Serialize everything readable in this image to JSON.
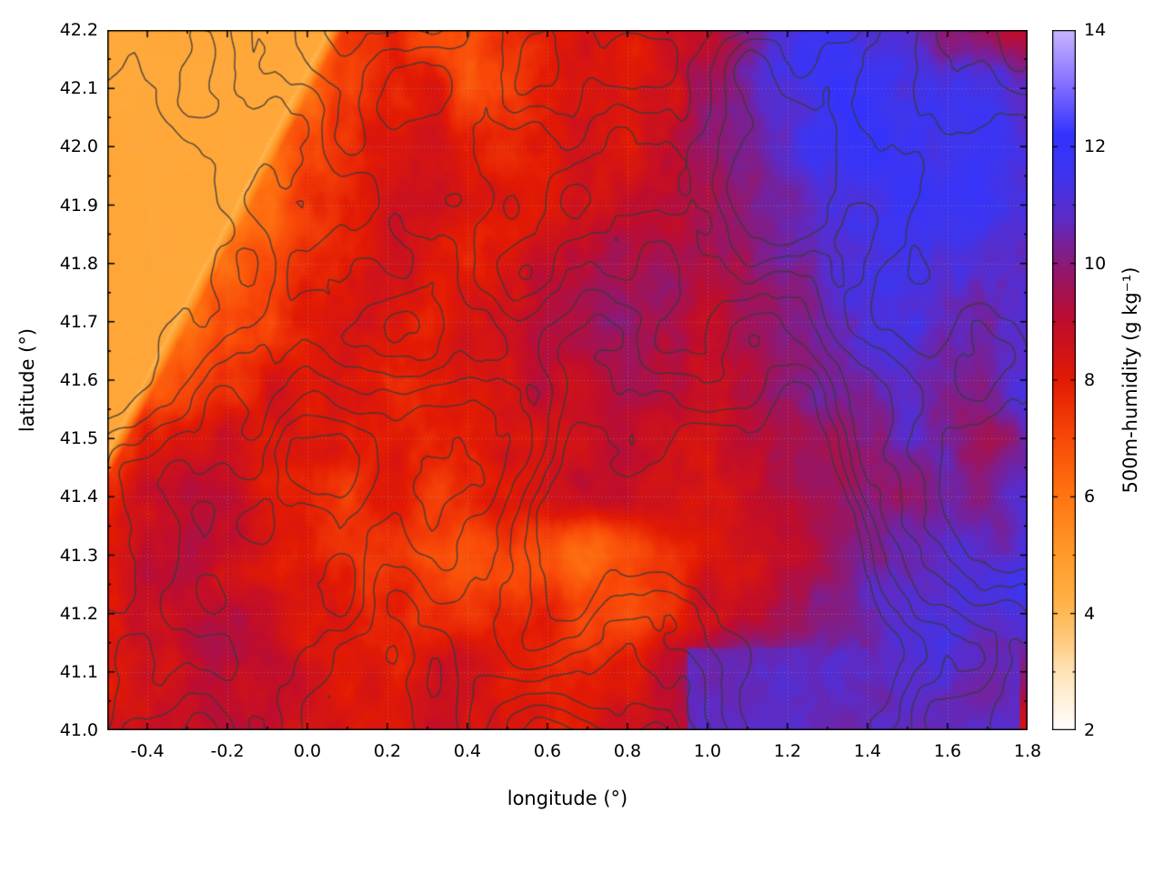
{
  "chart_data": {
    "type": "heatmap",
    "title": "",
    "xlabel": "longitude (°)",
    "ylabel": "latitude (°)",
    "colorbar_label": "500m-humidity (g kg⁻¹)",
    "xlim": [
      -0.5,
      1.8
    ],
    "ylim": [
      41.0,
      42.2
    ],
    "clim": [
      2,
      14
    ],
    "grid": {
      "on": true,
      "style": "dotted"
    },
    "x_tick_labels": [
      "-0.4",
      "-0.2",
      "0.0",
      "0.2",
      "0.4",
      "0.6",
      "0.8",
      "1.0",
      "1.2",
      "1.4",
      "1.6",
      "1.8"
    ],
    "x_tick_values": [
      -0.4,
      -0.2,
      0.0,
      0.2,
      0.4,
      0.6,
      0.8,
      1.0,
      1.2,
      1.4,
      1.6,
      1.8
    ],
    "x_minor_step": 0.1,
    "y_tick_labels": [
      "41.0",
      "41.1",
      "41.2",
      "41.3",
      "41.4",
      "41.5",
      "41.6",
      "41.7",
      "41.8",
      "41.9",
      "42.0",
      "42.1",
      "42.2"
    ],
    "y_tick_values": [
      41.0,
      41.1,
      41.2,
      41.3,
      41.4,
      41.5,
      41.6,
      41.7,
      41.8,
      41.9,
      42.0,
      42.1,
      42.2
    ],
    "y_minor_step": 0.05,
    "colorbar_tick_labels": [
      "2",
      "4",
      "6",
      "8",
      "10",
      "12",
      "14"
    ],
    "colorbar_tick_values": [
      2,
      4,
      6,
      8,
      10,
      12,
      14
    ],
    "colorbar_minor_step": 1,
    "contour_color": "#3a3a3a",
    "contour_levels": [
      -0.3,
      -0.2,
      -0.1,
      0,
      0.1,
      0.2,
      0.3
    ],
    "colormap_stops": [
      [
        2.0,
        "#ffffff"
      ],
      [
        3.0,
        "#ffe4b8"
      ],
      [
        3.6,
        "#ffc878"
      ],
      [
        4.2,
        "#ffb146"
      ],
      [
        5.0,
        "#ff9b2a"
      ],
      [
        6.0,
        "#ff7612"
      ],
      [
        7.0,
        "#f94908"
      ],
      [
        8.0,
        "#e31a04"
      ],
      [
        9.0,
        "#c00d2d"
      ],
      [
        9.7,
        "#9c1560"
      ],
      [
        10.3,
        "#7a2094"
      ],
      [
        10.8,
        "#5c2cc8"
      ],
      [
        11.5,
        "#3f35ee"
      ],
      [
        12.2,
        "#3333ff"
      ],
      [
        13.0,
        "#7e6aff"
      ],
      [
        14.0,
        "#c9b6ff"
      ]
    ],
    "flat_region": {
      "value": 4.55,
      "boundary": [
        [
          0.05,
          42.2
        ],
        [
          -0.5,
          41.48
        ]
      ],
      "fringe_value": 3.9
    },
    "flat_patches": [
      {
        "lon": [
          0.95,
          1.78
        ],
        "lat": [
          41.0,
          41.14
        ],
        "value": 10.7
      }
    ],
    "values_grid": {
      "lon": [
        -0.5,
        -0.4,
        -0.3,
        -0.2,
        -0.1,
        0.0,
        0.1,
        0.2,
        0.3,
        0.4,
        0.5,
        0.6,
        0.7,
        0.8,
        0.9,
        1.0,
        1.1,
        1.2,
        1.3,
        1.4,
        1.5,
        1.6,
        1.7,
        1.8
      ],
      "lat": [
        42.2,
        42.1,
        42.0,
        41.9,
        41.8,
        41.7,
        41.6,
        41.5,
        41.4,
        41.3,
        41.2,
        41.1,
        41.0
      ],
      "humidity": [
        [
          5.0,
          5.0,
          5.0,
          5.0,
          5.2,
          5.6,
          7.4,
          7.8,
          7.0,
          6.8,
          7.6,
          7.9,
          8.3,
          8.0,
          8.6,
          9.2,
          10.4,
          11.0,
          11.4,
          11.2,
          10.8,
          10.2,
          9.6,
          9.0
        ],
        [
          5.0,
          5.0,
          5.0,
          5.1,
          5.4,
          6.2,
          7.2,
          8.0,
          8.1,
          6.9,
          7.2,
          7.9,
          8.4,
          8.1,
          8.7,
          9.6,
          10.6,
          11.2,
          11.6,
          11.9,
          11.6,
          11.2,
          11.3,
          10.8
        ],
        [
          5.0,
          5.0,
          5.1,
          5.3,
          5.8,
          6.8,
          7.7,
          8.1,
          8.3,
          7.7,
          7.6,
          8.1,
          8.6,
          8.3,
          8.9,
          9.9,
          10.3,
          10.9,
          11.6,
          12.0,
          11.9,
          11.6,
          11.9,
          11.3
        ],
        [
          5.0,
          5.1,
          5.3,
          5.6,
          6.4,
          7.2,
          7.9,
          8.4,
          8.5,
          8.1,
          7.9,
          8.3,
          8.6,
          8.9,
          9.3,
          9.6,
          10.1,
          10.6,
          11.1,
          11.5,
          12.0,
          11.8,
          11.5,
          11.2
        ],
        [
          5.1,
          5.3,
          5.6,
          6.2,
          7.0,
          7.7,
          8.1,
          8.6,
          8.3,
          8.1,
          8.4,
          8.9,
          9.1,
          9.4,
          9.6,
          9.4,
          9.9,
          10.3,
          10.8,
          11.2,
          11.5,
          11.2,
          10.9,
          10.7
        ],
        [
          5.2,
          5.5,
          6.1,
          6.9,
          7.4,
          7.9,
          8.3,
          8.1,
          7.9,
          8.3,
          8.6,
          8.9,
          9.3,
          9.6,
          9.4,
          9.1,
          9.6,
          10.1,
          10.5,
          11.0,
          11.2,
          10.8,
          10.3,
          11.0
        ],
        [
          5.5,
          6.1,
          6.9,
          7.6,
          8.1,
          8.4,
          8.1,
          7.9,
          8.1,
          8.4,
          8.6,
          8.9,
          9.1,
          9.3,
          9.1,
          8.9,
          9.3,
          9.8,
          10.2,
          10.5,
          10.8,
          10.5,
          10.1,
          10.9
        ],
        [
          6.8,
          7.6,
          8.1,
          8.6,
          8.3,
          8.1,
          7.9,
          8.1,
          7.7,
          7.9,
          8.3,
          8.6,
          8.9,
          9.1,
          8.9,
          8.6,
          9.1,
          9.5,
          9.8,
          10.2,
          10.5,
          10.2,
          9.9,
          10.6
        ],
        [
          7.9,
          8.6,
          9.1,
          8.9,
          8.3,
          7.9,
          7.6,
          7.9,
          7.3,
          7.6,
          8.1,
          8.4,
          8.6,
          8.9,
          8.6,
          8.3,
          8.9,
          9.3,
          9.6,
          9.9,
          10.2,
          10.5,
          10.1,
          10.9
        ],
        [
          8.1,
          8.9,
          9.3,
          8.6,
          8.1,
          7.9,
          7.6,
          7.3,
          6.9,
          6.6,
          7.1,
          6.9,
          6.3,
          6.9,
          7.6,
          8.1,
          8.6,
          9.1,
          9.6,
          10.1,
          10.6,
          11.0,
          10.6,
          11.2
        ],
        [
          7.9,
          8.6,
          9.1,
          8.9,
          8.6,
          8.3,
          8.1,
          7.9,
          7.6,
          7.3,
          7.6,
          7.9,
          7.3,
          6.9,
          7.6,
          8.6,
          9.1,
          9.6,
          10.1,
          10.6,
          11.0,
          11.2,
          10.9,
          11.4
        ],
        [
          8.1,
          8.6,
          8.9,
          9.1,
          8.9,
          8.6,
          8.3,
          8.1,
          8.4,
          8.6,
          8.1,
          7.6,
          7.9,
          8.3,
          9.1,
          10.3,
          10.8,
          11.0,
          10.9,
          10.6,
          11.0,
          11.2,
          10.6,
          10.2
        ],
        [
          8.3,
          8.6,
          8.6,
          8.9,
          8.6,
          8.4,
          8.1,
          8.3,
          8.6,
          8.4,
          8.1,
          7.9,
          8.1,
          8.6,
          9.1,
          9.9,
          10.3,
          10.6,
          10.3,
          10.1,
          9.9,
          9.6,
          8.9,
          8.3
        ]
      ]
    }
  }
}
